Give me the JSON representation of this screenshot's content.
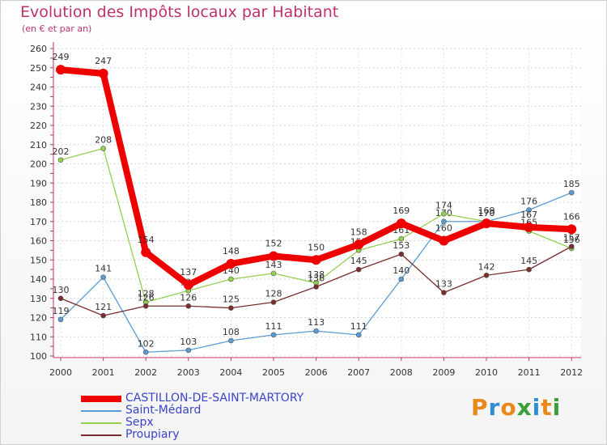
{
  "chart_data": {
    "type": "line",
    "title": "Evolution des Impôts locaux par Habitant",
    "subtitle": "(en € et par an)",
    "xlabel": "",
    "ylabel": "",
    "ylim": [
      100,
      260
    ],
    "yticks": [
      100,
      110,
      120,
      130,
      140,
      150,
      160,
      170,
      180,
      190,
      200,
      210,
      220,
      230,
      240,
      250,
      260
    ],
    "categories": [
      "2000",
      "2001",
      "2002",
      "2003",
      "2004",
      "2005",
      "2006",
      "2007",
      "2008",
      "2009",
      "2010",
      "2011",
      "2012"
    ],
    "series": [
      {
        "name": "Saint-Médard",
        "color": "#5b9bd5",
        "values": [
          119,
          141,
          102,
          103,
          108,
          111,
          113,
          111,
          140,
          170,
          170,
          176,
          185
        ]
      },
      {
        "name": "Sepx",
        "color": "#92d050",
        "values": [
          202,
          208,
          128,
          134,
          140,
          143,
          138,
          155,
          161,
          174,
          170,
          165,
          156
        ]
      },
      {
        "name": "Proupiary",
        "color": "#7b2c2c",
        "values": [
          130,
          121,
          126,
          126,
          125,
          128,
          136,
          145,
          153,
          133,
          142,
          145,
          157
        ]
      },
      {
        "name": "CASTILLON-DE-SAINT-MARTORY",
        "color": "#ee0000",
        "values": [
          249,
          247,
          154,
          137,
          148,
          152,
          150,
          158,
          169,
          160,
          169,
          167,
          166
        ]
      }
    ],
    "legend_order": [
      "CASTILLON-DE-SAINT-MARTORY",
      "Saint-Médard",
      "Sepx",
      "Proupiary"
    ],
    "legend_position": "bottom-left"
  },
  "brand": {
    "letters": [
      "P",
      "r",
      "o",
      "x",
      "i",
      "t",
      "i"
    ],
    "colors": [
      "#e8891a",
      "#2f8fd0",
      "#e8891a",
      "#3aa03a",
      "#2f8fd0",
      "#e8891a",
      "#3aa03a"
    ]
  }
}
